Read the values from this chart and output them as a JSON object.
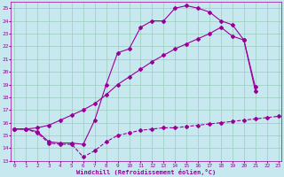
{
  "background_color": "#c8e8f0",
  "grid_color": "#99ccbb",
  "line_color": "#990099",
  "xlim": [
    -0.3,
    23.3
  ],
  "ylim": [
    13,
    25.5
  ],
  "xlabel": "Windchill (Refroidissement éolien,°C)",
  "xticks": [
    0,
    1,
    2,
    3,
    4,
    5,
    6,
    7,
    8,
    9,
    10,
    11,
    12,
    13,
    14,
    15,
    16,
    17,
    18,
    19,
    20,
    21,
    22,
    23
  ],
  "yticks": [
    13,
    14,
    15,
    16,
    17,
    18,
    19,
    20,
    21,
    22,
    23,
    24,
    25
  ],
  "s1_x": [
    0,
    1,
    2,
    3,
    4,
    5,
    6,
    7,
    8,
    9,
    10,
    11,
    12,
    13,
    14,
    15,
    16,
    17,
    18,
    19,
    20,
    21,
    22,
    23
  ],
  "s1_y": [
    15.5,
    15.5,
    15.2,
    14.4,
    14.3,
    14.3,
    13.3,
    13.8,
    14.5,
    15.0,
    15.2,
    15.4,
    15.5,
    15.6,
    15.6,
    15.7,
    15.8,
    15.9,
    16.0,
    16.1,
    16.2,
    16.3,
    16.4,
    16.5
  ],
  "s2_x": [
    0,
    1,
    2,
    3,
    4,
    5,
    6,
    7,
    8,
    9,
    10,
    11,
    12,
    13,
    14,
    15,
    16,
    17,
    18,
    19,
    20,
    21
  ],
  "s2_y": [
    15.5,
    15.5,
    15.6,
    15.8,
    16.2,
    16.6,
    17.0,
    17.5,
    18.2,
    19.0,
    19.6,
    20.2,
    20.8,
    21.3,
    21.8,
    22.2,
    22.6,
    23.0,
    23.5,
    22.8,
    22.5,
    18.5
  ],
  "s3_x": [
    0,
    1,
    2,
    3,
    4,
    5,
    6,
    7,
    8,
    9,
    10,
    11,
    12,
    13,
    14,
    15,
    16,
    17,
    18,
    19,
    20,
    21
  ],
  "s3_y": [
    15.5,
    15.5,
    15.3,
    14.5,
    14.4,
    14.4,
    14.3,
    16.2,
    19.0,
    21.5,
    21.8,
    23.5,
    24.0,
    24.0,
    25.0,
    25.2,
    25.0,
    24.7,
    24.0,
    23.7,
    22.5,
    18.8
  ],
  "marker_size": 2.0,
  "linewidth": 0.8
}
